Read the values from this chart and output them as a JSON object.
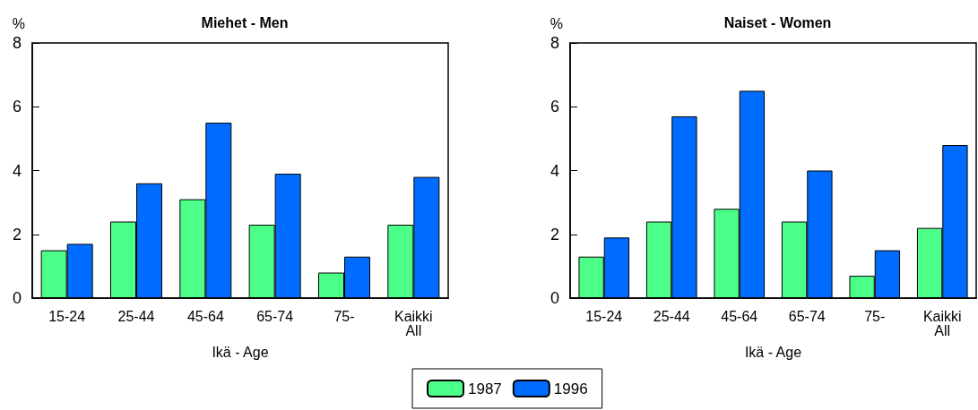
{
  "chart_data": [
    {
      "type": "bar",
      "title": "Miehet - Men",
      "xlabel": "Ikä - Age",
      "ylabel": "%",
      "categories": [
        "15-24",
        "25-44",
        "45-64",
        "65-74",
        "75-",
        "Kaikki\nAll"
      ],
      "series": [
        {
          "name": "1987",
          "color": "#4cff88",
          "values": [
            1.5,
            2.4,
            3.1,
            2.3,
            0.8,
            2.3
          ]
        },
        {
          "name": "1996",
          "color": "#006cff",
          "values": [
            1.7,
            3.6,
            5.5,
            3.9,
            1.3,
            3.8
          ]
        }
      ],
      "ylim": [
        0,
        8
      ],
      "yticks": [
        0,
        2,
        4,
        6,
        8
      ],
      "grid": false,
      "legend": "bottom"
    },
    {
      "type": "bar",
      "title": "Naiset - Women",
      "xlabel": "Ikä - Age",
      "ylabel": "%",
      "categories": [
        "15-24",
        "25-44",
        "45-64",
        "65-74",
        "75-",
        "Kaikki\nAll"
      ],
      "series": [
        {
          "color": "#4cff88",
          "values": [
            1.3,
            2.4,
            2.8,
            2.4,
            0.7,
            2.2
          ]
        },
        {
          "color": "#006cff",
          "values": [
            1.9,
            5.7,
            6.5,
            4.0,
            1.5,
            4.8
          ]
        }
      ],
      "ylim": [
        0,
        8
      ],
      "yticks": [
        0,
        2,
        4,
        6,
        8
      ],
      "grid": false
    }
  ]
}
